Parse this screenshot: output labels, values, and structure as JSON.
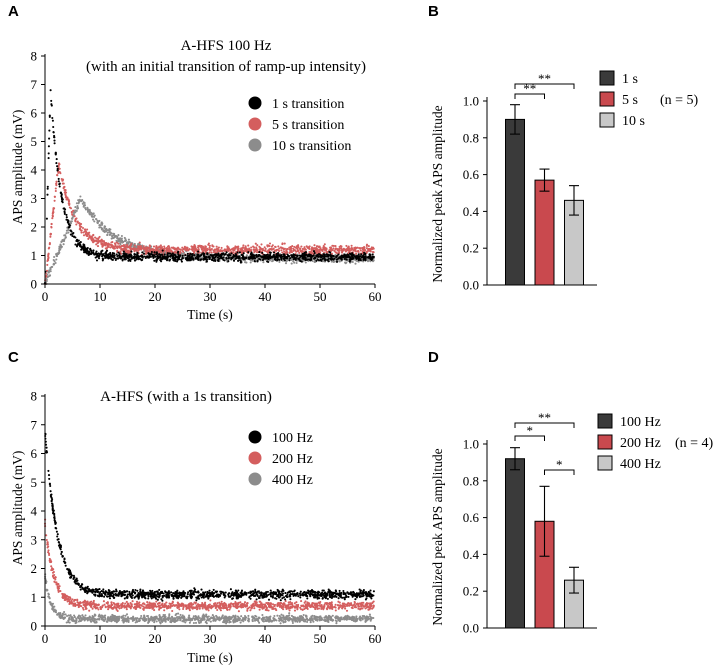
{
  "panel_labels": [
    "A",
    "B",
    "C",
    "D"
  ],
  "chart_data": [
    {
      "id": "A",
      "type": "scatter",
      "title_line1": "A-HFS 100 Hz",
      "title_line2": "(with an initial transition of ramp-up intensity)",
      "xlabel": "Time (s)",
      "ylabel": "APS amplitude (mV)",
      "xlim": [
        0,
        60
      ],
      "ylim": [
        0,
        8
      ],
      "xticks": [
        "0",
        "10",
        "20",
        "30",
        "40",
        "50",
        "60"
      ],
      "yticks": [
        "0",
        "1",
        "2",
        "3",
        "4",
        "5",
        "6",
        "7",
        "8"
      ],
      "legend_position": "top-right",
      "series": [
        {
          "name": "1 s transition",
          "color": "#000000",
          "ramp_end_s": 1,
          "peak": 6.8,
          "tau": 2.0,
          "steady": 0.95
        },
        {
          "name": "5 s transition",
          "color": "#d45e5e",
          "ramp_end_s": 2.5,
          "peak": 4.2,
          "tau": 3.0,
          "steady": 1.2
        },
        {
          "name": "10 s transition",
          "color": "#8c8c8c",
          "ramp_end_s": 6.5,
          "peak": 3.0,
          "tau": 6.0,
          "steady": 0.9
        }
      ]
    },
    {
      "id": "B",
      "type": "bar",
      "ylabel": "Normalized peak APS amplitude",
      "ylim": [
        0,
        1.0
      ],
      "yticks": [
        "0.0",
        "0.2",
        "0.4",
        "0.6",
        "0.8",
        "1.0"
      ],
      "categories": [
        "1 s",
        "5 s",
        "10 s"
      ],
      "values": [
        0.9,
        0.57,
        0.46
      ],
      "errors": [
        0.08,
        0.06,
        0.08
      ],
      "colors": [
        "#3a3a3a",
        "#c9494e",
        "#c8c8c8"
      ],
      "n_label": "(n = 5)",
      "significance": [
        {
          "from": 0,
          "to": 1,
          "label": "**"
        },
        {
          "from": 0,
          "to": 2,
          "label": "**"
        }
      ]
    },
    {
      "id": "C",
      "type": "scatter",
      "title": "A-HFS  (with a 1s transition)",
      "xlabel": "Time (s)",
      "ylabel": "APS amplitude (mV)",
      "xlim": [
        0,
        60
      ],
      "ylim": [
        0,
        8
      ],
      "xticks": [
        "0",
        "10",
        "20",
        "30",
        "40",
        "50",
        "60"
      ],
      "yticks": [
        "0",
        "1",
        "2",
        "3",
        "4",
        "5",
        "6",
        "7",
        "8"
      ],
      "legend_position": "right",
      "series": [
        {
          "name": "100 Hz",
          "color": "#000000",
          "peak": 6.8,
          "tau": 2.2,
          "steady": 1.1
        },
        {
          "name": "200 Hz",
          "color": "#d45e5e",
          "peak": 3.6,
          "tau": 1.6,
          "steady": 0.7
        },
        {
          "name": "400 Hz",
          "color": "#8c8c8c",
          "peak": 1.8,
          "tau": 1.0,
          "steady": 0.25
        }
      ]
    },
    {
      "id": "D",
      "type": "bar",
      "ylabel": "Normalized peak APS amplitude",
      "ylim": [
        0,
        1.0
      ],
      "yticks": [
        "0.0",
        "0.2",
        "0.4",
        "0.6",
        "0.8",
        "1.0"
      ],
      "categories": [
        "100 Hz",
        "200 Hz",
        "400 Hz"
      ],
      "values": [
        0.92,
        0.58,
        0.26
      ],
      "errors": [
        0.06,
        0.19,
        0.07
      ],
      "colors": [
        "#3a3a3a",
        "#c9494e",
        "#c8c8c8"
      ],
      "n_label": "(n = 4)",
      "significance": [
        {
          "from": 0,
          "to": 1,
          "label": "*"
        },
        {
          "from": 0,
          "to": 2,
          "label": "**"
        },
        {
          "from": 1,
          "to": 2,
          "label": "*"
        }
      ]
    }
  ]
}
